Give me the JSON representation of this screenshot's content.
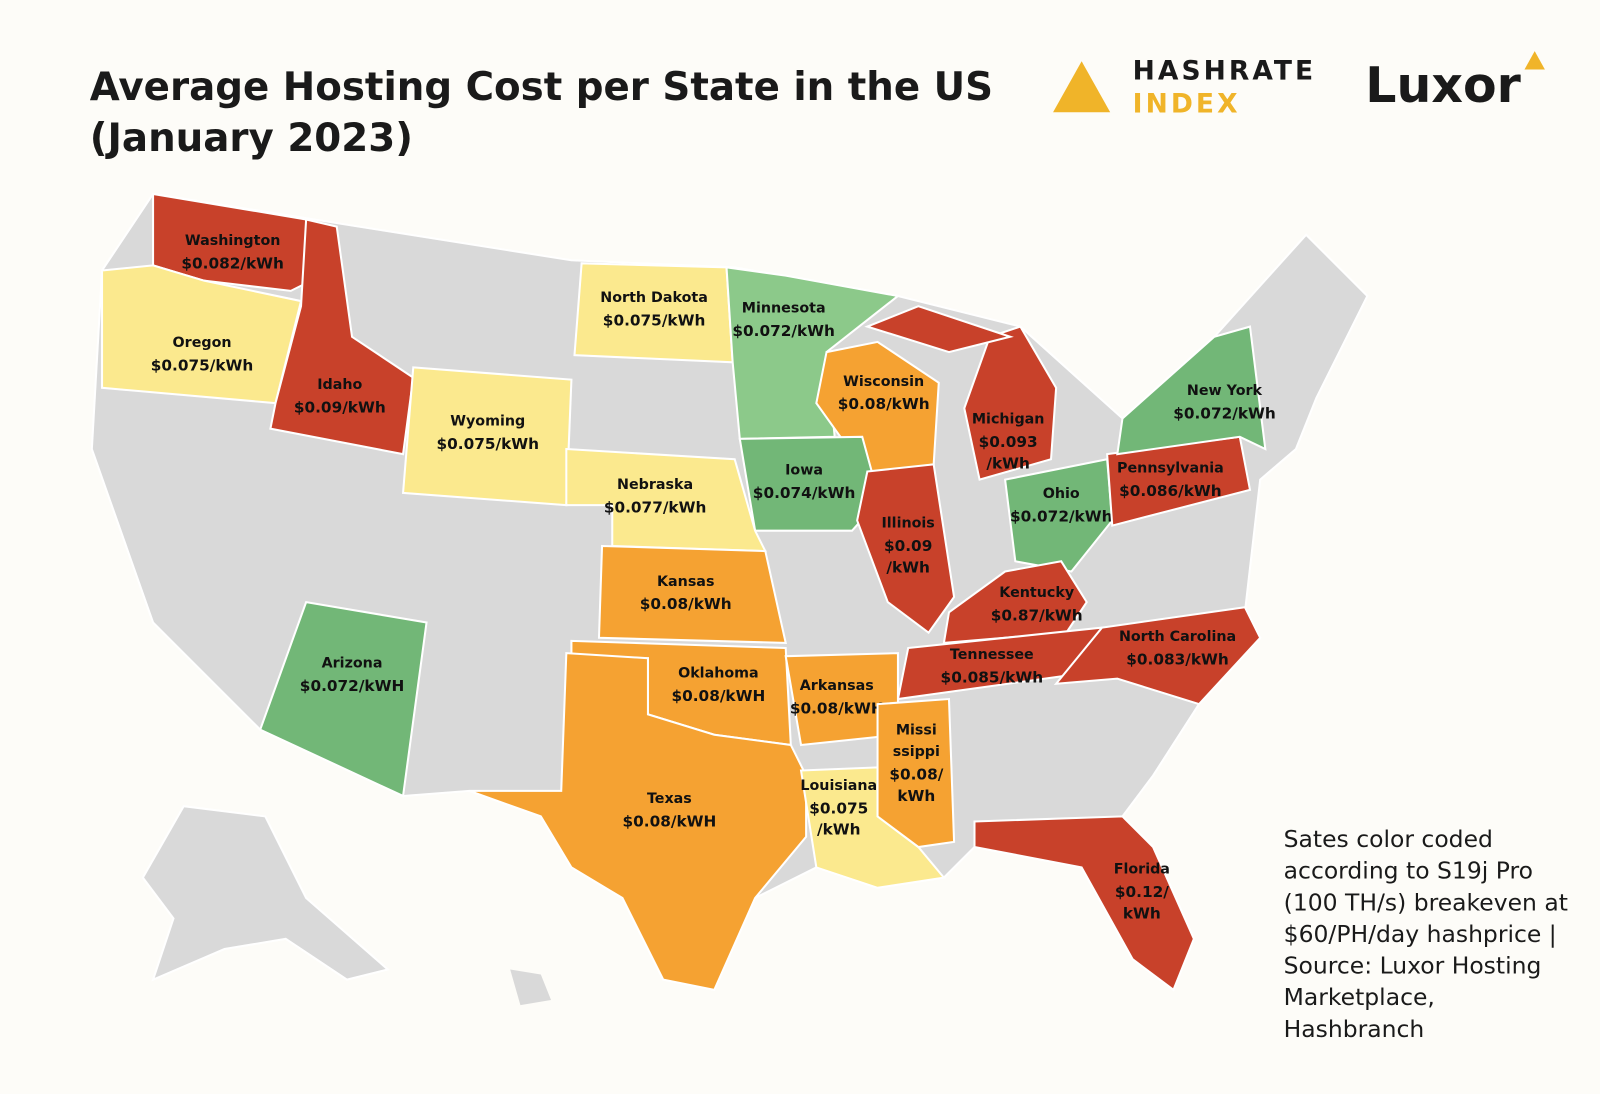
{
  "header": {
    "title": [
      "Average Hosting Cost per State in the US",
      "(January 2023)"
    ]
  },
  "logos": {
    "hashrate": [
      "HASHRATE",
      "INDEX"
    ],
    "luxor": "Luxor"
  },
  "states": [
    {
      "name": [
        "Washington"
      ],
      "cost": [
        "$0.082/kWh"
      ],
      "color": "#c8412a"
    },
    {
      "name": [
        "Oregon"
      ],
      "cost": [
        "$0.075/kWh"
      ],
      "color": "#fbe98e"
    },
    {
      "name": [
        "Idaho"
      ],
      "cost": [
        "$0.09/kWh"
      ],
      "color": "#c8412a"
    },
    {
      "name": [
        "Wyoming"
      ],
      "cost": [
        "$0.075/kWh"
      ],
      "color": "#fbe98e"
    },
    {
      "name": [
        "North Dakota"
      ],
      "cost": [
        "$0.075/kWh"
      ],
      "color": "#fbe98e"
    },
    {
      "name": [
        "Minnesota"
      ],
      "cost": [
        "$0.072/kWh"
      ],
      "color": "#8cc98a"
    },
    {
      "name": [
        "Wisconsin"
      ],
      "cost": [
        "$0.08/kWh"
      ],
      "color": "#f5a232"
    },
    {
      "name": [
        "Michigan"
      ],
      "cost": [
        "$0.093",
        "/kWh"
      ],
      "color": "#c8412a"
    },
    {
      "name": [
        "Iowa"
      ],
      "cost": [
        "$0.074/kWh"
      ],
      "color": "#72b777"
    },
    {
      "name": [
        "Nebraska"
      ],
      "cost": [
        "$0.077/kWh"
      ],
      "color": "#fbe98e"
    },
    {
      "name": [
        "Kansas"
      ],
      "cost": [
        "$0.08/kWh"
      ],
      "color": "#f5a232"
    },
    {
      "name": [
        "Illinois"
      ],
      "cost": [
        "$0.09",
        "/kWh"
      ],
      "color": "#c8412a"
    },
    {
      "name": [
        "Ohio"
      ],
      "cost": [
        "$0.072/kWh"
      ],
      "color": "#72b777"
    },
    {
      "name": [
        "Pennsylvania"
      ],
      "cost": [
        "$0.086/kWh"
      ],
      "color": "#c8412a"
    },
    {
      "name": [
        "New York"
      ],
      "cost": [
        "$0.072/kWh"
      ],
      "color": "#72b777"
    },
    {
      "name": [
        "Kentucky"
      ],
      "cost": [
        "$0.87/kWh"
      ],
      "color": "#c8412a"
    },
    {
      "name": [
        "Tennessee"
      ],
      "cost": [
        "$0.085/kWh"
      ],
      "color": "#c8412a"
    },
    {
      "name": [
        "North Carolina"
      ],
      "cost": [
        "$0.083/kWh"
      ],
      "color": "#c8412a"
    },
    {
      "name": [
        "Arizona"
      ],
      "cost": [
        "$0.072/kWH"
      ],
      "color": "#72b777"
    },
    {
      "name": [
        "Oklahoma"
      ],
      "cost": [
        "$0.08/kWH"
      ],
      "color": "#f5a232"
    },
    {
      "name": [
        "Texas"
      ],
      "cost": [
        "$0.08/kWH"
      ],
      "color": "#f5a232"
    },
    {
      "name": [
        "Arkansas"
      ],
      "cost": [
        "$0.08/kWH"
      ],
      "color": "#f5a232"
    },
    {
      "name": [
        "Louisiana"
      ],
      "cost": [
        "$0.075",
        "/kWh"
      ],
      "color": "#fbe98e"
    },
    {
      "name": [
        "Missi",
        "ssippi"
      ],
      "cost": [
        "$0.08/",
        "kWh"
      ],
      "color": "#f5a232"
    },
    {
      "name": [
        "Florida"
      ],
      "cost": [
        "$0.12/",
        "kWh"
      ],
      "color": "#c8412a"
    }
  ],
  "note": [
    "Sates color coded",
    "according to S19j Pro",
    "(100 TH/s) breakeven at",
    "$60/PH/day hashprice |",
    "Source: Luxor Hosting",
    "Marketplace,",
    "Hashbranch"
  ]
}
